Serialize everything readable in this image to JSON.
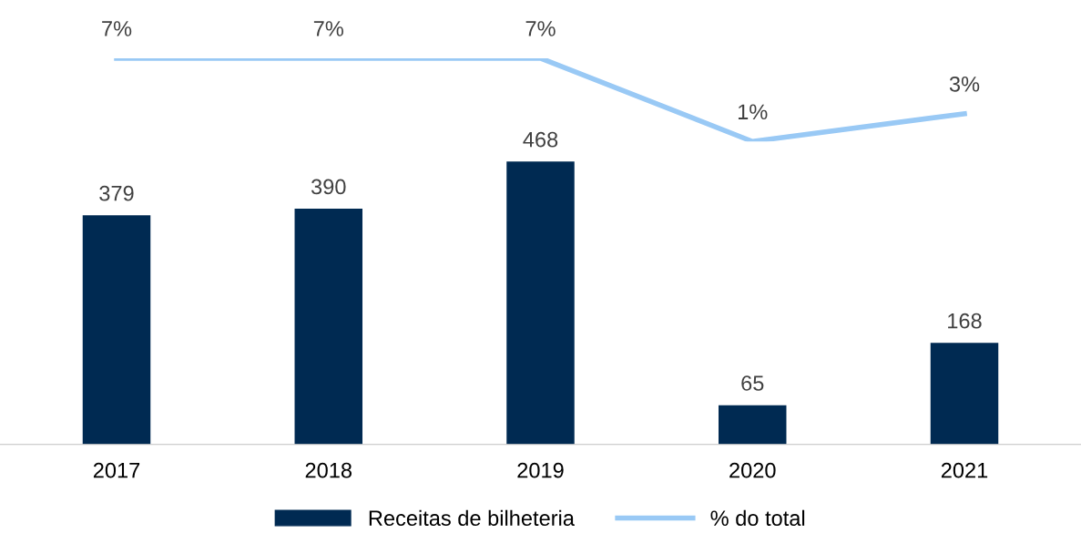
{
  "chart_data": [
    {
      "type": "bar",
      "categories": [
        "2017",
        "2018",
        "2019",
        "2020",
        "2021"
      ],
      "series": [
        {
          "name": "Receitas de bilheteria",
          "color": "#002a52",
          "values": [
            379,
            390,
            468,
            65,
            168
          ]
        }
      ],
      "data_labels": true,
      "tick_labels": "x",
      "legend": "bottom"
    },
    {
      "type": "line",
      "categories": [
        "2017",
        "2018",
        "2019",
        "2020",
        "2021"
      ],
      "series": [
        {
          "name": "% do total",
          "color": "#99c9f5",
          "values": [
            7,
            7,
            7,
            1,
            3
          ],
          "value_labels": [
            "7%",
            "7%",
            "7%",
            "1%",
            "3%"
          ]
        }
      ],
      "tick_labels": false,
      "legend": "bottom",
      "marker": "none",
      "line_style": "solid"
    }
  ]
}
